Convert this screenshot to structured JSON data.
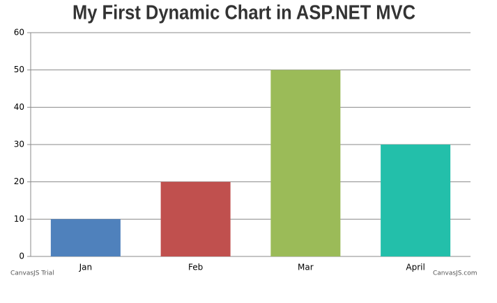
{
  "chart_data": {
    "type": "bar",
    "title": "My First Dynamic Chart in ASP.NET MVC",
    "categories": [
      "Jan",
      "Feb",
      "Mar",
      "April"
    ],
    "values": [
      10,
      20,
      50,
      30
    ],
    "colors": [
      "#4f81bc",
      "#c0504e",
      "#9bbb58",
      "#23bfaa"
    ],
    "ylim": [
      0,
      60
    ],
    "yticks": [
      0,
      10,
      20,
      30,
      40,
      50,
      60
    ],
    "grid": true,
    "watermark": "CanvasJS Trial",
    "credit": "CanvasJS.com"
  }
}
